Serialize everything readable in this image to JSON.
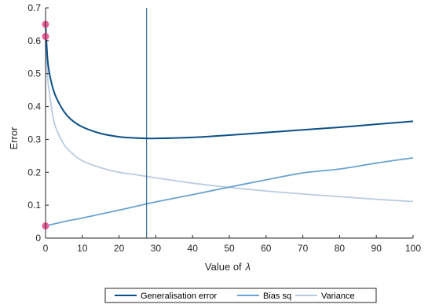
{
  "chart_data": {
    "type": "line",
    "xlabel": "Value of",
    "xlabel_symbol": "λ",
    "ylabel": "Error",
    "xlim": [
      0,
      100
    ],
    "ylim": [
      0,
      0.7
    ],
    "xticks": [
      "0",
      "10",
      "20",
      "30",
      "40",
      "50",
      "60",
      "70",
      "80",
      "90",
      "100"
    ],
    "yticks": [
      "0",
      "0.1",
      "0.2",
      "0.3",
      "0.4",
      "0.5",
      "0.6",
      "0.7"
    ],
    "vline_x": 27.5,
    "grid": false,
    "legend_position": "bottom",
    "series": [
      {
        "name": "Generalisation error",
        "color": "#0b4f86",
        "x": [
          0,
          0.5,
          1,
          2,
          3,
          5,
          7,
          10,
          15,
          20,
          25,
          30,
          40,
          50,
          60,
          70,
          80,
          90,
          100
        ],
        "y": [
          0.65,
          0.55,
          0.505,
          0.455,
          0.425,
          0.385,
          0.36,
          0.338,
          0.318,
          0.308,
          0.304,
          0.303,
          0.306,
          0.313,
          0.321,
          0.329,
          0.337,
          0.346,
          0.355
        ]
      },
      {
        "name": "Bias sq",
        "color": "#6aa3d0",
        "x": [
          0,
          5,
          10,
          20,
          30,
          40,
          50,
          60,
          70,
          80,
          90,
          100
        ],
        "y": [
          0.037,
          0.05,
          0.061,
          0.085,
          0.11,
          0.132,
          0.155,
          0.177,
          0.198,
          0.21,
          0.228,
          0.244
        ]
      },
      {
        "name": "Variance",
        "color": "#b8cbe0",
        "x": [
          0,
          0.5,
          1,
          2,
          3,
          5,
          7,
          10,
          15,
          20,
          25,
          30,
          40,
          50,
          60,
          70,
          80,
          90,
          100
        ],
        "y": [
          0.613,
          0.5,
          0.445,
          0.37,
          0.33,
          0.285,
          0.26,
          0.235,
          0.214,
          0.2,
          0.192,
          0.183,
          0.167,
          0.154,
          0.143,
          0.134,
          0.126,
          0.118,
          0.111
        ]
      }
    ],
    "markers": [
      {
        "x": 0,
        "y": 0.65,
        "color": "#ec5f9b"
      },
      {
        "x": 0,
        "y": 0.613,
        "color": "#ec5f9b"
      },
      {
        "x": 0,
        "y": 0.037,
        "color": "#ec5f9b"
      }
    ]
  }
}
